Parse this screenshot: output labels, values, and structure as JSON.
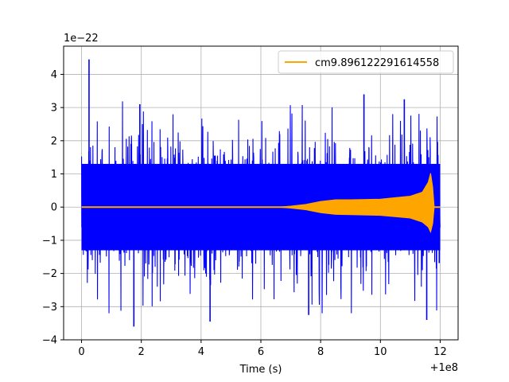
{
  "chart_data": {
    "type": "line",
    "title": "",
    "xlabel": "Time (s)",
    "ylabel": "",
    "x_offset_label": "+1e8",
    "y_scale_label": "1e−22",
    "xlim": [
      -0.6,
      12.6
    ],
    "ylim": [
      -4.0,
      4.85
    ],
    "x_ticks": [
      0,
      2,
      4,
      6,
      8,
      10,
      12
    ],
    "x_tick_labels": [
      "0",
      "2",
      "4",
      "6",
      "8",
      "10",
      "12"
    ],
    "y_ticks": [
      -4,
      -3,
      -2,
      -1,
      0,
      1,
      2,
      3,
      4
    ],
    "y_tick_labels": [
      "−4",
      "−3",
      "−2",
      "−1",
      "0",
      "1",
      "2",
      "3",
      "4"
    ],
    "grid": true,
    "legend_position": "top-right",
    "series": [
      {
        "name": "",
        "color": "#0000ff",
        "kind": "noise",
        "x_range": [
          0,
          12.0
        ],
        "typical_envelope": 1.7,
        "dense_envelope": 2.1,
        "peak_max": 4.45,
        "peak_min": -3.6
      },
      {
        "name": "cm9.896122291614558",
        "color": "#ffa500",
        "kind": "chirp",
        "x": [
          0.0,
          6.0,
          6.6,
          7.0,
          7.5,
          8.0,
          8.5,
          9.0,
          10.0,
          11.0,
          11.4,
          11.6,
          11.68,
          11.75,
          11.8,
          12.0
        ],
        "upper": [
          0.0,
          0.0,
          0.0,
          0.03,
          0.08,
          0.17,
          0.22,
          0.22,
          0.24,
          0.33,
          0.45,
          0.75,
          1.02,
          0.6,
          0.0,
          0.0
        ],
        "lower": [
          0.0,
          0.0,
          0.0,
          -0.03,
          -0.08,
          -0.17,
          -0.22,
          -0.23,
          -0.25,
          -0.33,
          -0.45,
          -0.6,
          -0.75,
          -0.5,
          0.0,
          0.0
        ]
      }
    ]
  }
}
